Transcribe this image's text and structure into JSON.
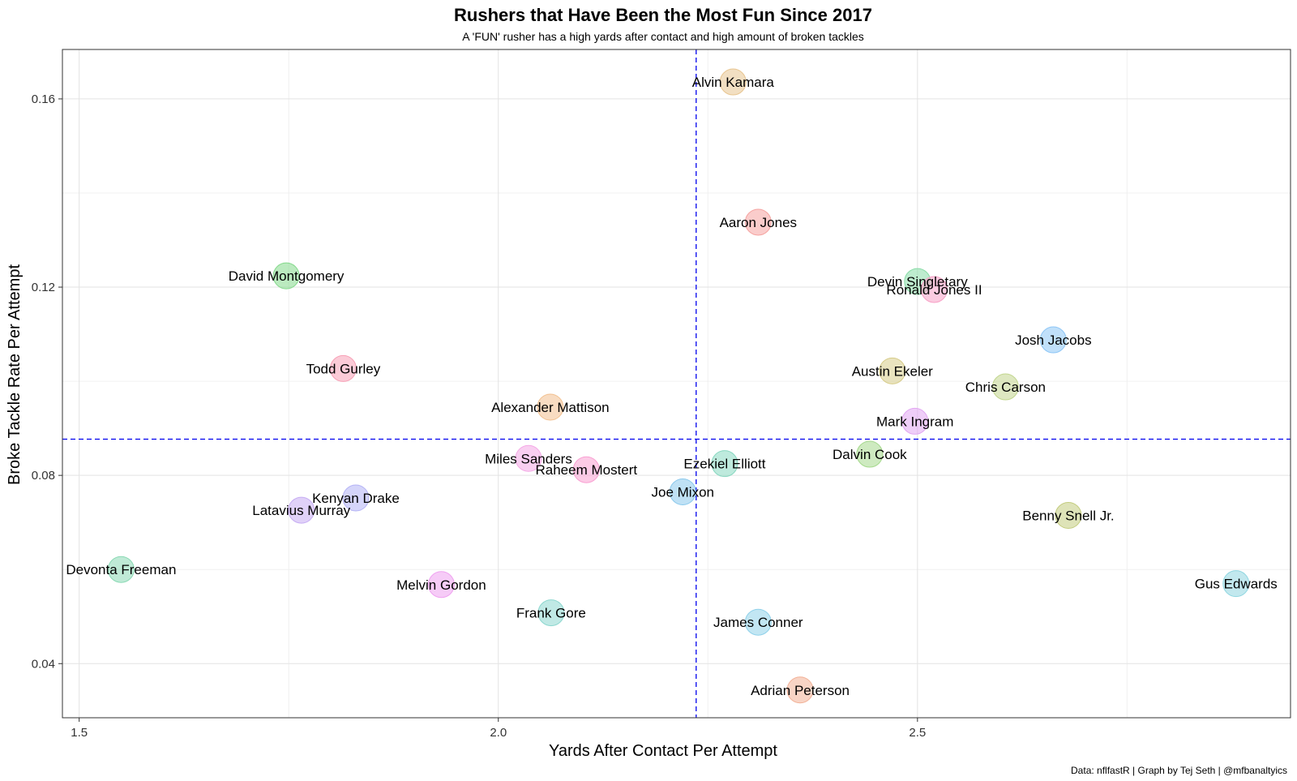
{
  "chart_data": {
    "type": "scatter",
    "title": "Rushers that Have Been the Most Fun Since 2017",
    "subtitle": "A 'FUN' rusher has a high yards after contact and high amount of broken tackles",
    "xlabel": "Yards After Contact Per Attempt",
    "ylabel": "Broke Tackle Rate Per Attempt",
    "caption": "Data: nflfastR | Graph by Tej Seth | @mfbanaltyics",
    "xlim": [
      1.48,
      2.945
    ],
    "ylim": [
      0.0285,
      0.1705
    ],
    "x_ticks": [
      1.5,
      2.0,
      2.5
    ],
    "x_tick_labels": [
      "1.5",
      "2.0",
      "2.5"
    ],
    "y_ticks": [
      0.04,
      0.08,
      0.12,
      0.16
    ],
    "y_tick_labels": [
      "0.04",
      "0.08",
      "0.12",
      "0.16"
    ],
    "grid": true,
    "reference_lines": {
      "x_mean": 2.236,
      "y_mean": 0.0877,
      "color": "#0000ee"
    },
    "points": [
      {
        "name": "Alvin Kamara",
        "x": 2.28,
        "y": 0.1636,
        "color": "#e8c590"
      },
      {
        "name": "Aaron Jones",
        "x": 2.31,
        "y": 0.1338,
        "color": "#f5a3a0"
      },
      {
        "name": "David Montgomery",
        "x": 1.747,
        "y": 0.1224,
        "color": "#83d98a"
      },
      {
        "name": "Devin Singletary",
        "x": 2.5,
        "y": 0.1212,
        "color": "#89dca7"
      },
      {
        "name": "Ronald Jones II",
        "x": 2.52,
        "y": 0.1195,
        "color": "#f7a0c6"
      },
      {
        "name": "Josh Jacobs",
        "x": 2.662,
        "y": 0.1088,
        "color": "#8dc6f6"
      },
      {
        "name": "Todd Gurley",
        "x": 1.815,
        "y": 0.1027,
        "color": "#f7a0b6"
      },
      {
        "name": "Austin Ekeler",
        "x": 2.47,
        "y": 0.1022,
        "color": "#d7cc89"
      },
      {
        "name": "Chris Carson",
        "x": 2.605,
        "y": 0.0988,
        "color": "#c2d68e"
      },
      {
        "name": "Alexander Mattison",
        "x": 2.062,
        "y": 0.0945,
        "color": "#f2c08f"
      },
      {
        "name": "Mark Ingram",
        "x": 2.497,
        "y": 0.0915,
        "color": "#e2a6f2"
      },
      {
        "name": "Dalvin Cook",
        "x": 2.443,
        "y": 0.0845,
        "color": "#a5d98c"
      },
      {
        "name": "Miles Sanders",
        "x": 2.036,
        "y": 0.0836,
        "color": "#f4a7e6"
      },
      {
        "name": "Ezekiel Elliott",
        "x": 2.27,
        "y": 0.0825,
        "color": "#89d8c1"
      },
      {
        "name": "Raheem Mostert",
        "x": 2.105,
        "y": 0.0812,
        "color": "#f9a0d2"
      },
      {
        "name": "Joe Mixon",
        "x": 2.22,
        "y": 0.0765,
        "color": "#8bc9ec"
      },
      {
        "name": "Kenyan Drake",
        "x": 1.83,
        "y": 0.0752,
        "color": "#b3b2f5"
      },
      {
        "name": "Latavius Murray",
        "x": 1.765,
        "y": 0.0726,
        "color": "#c6acf3"
      },
      {
        "name": "Benny Snell Jr.",
        "x": 2.68,
        "y": 0.0715,
        "color": "#c3cc7e"
      },
      {
        "name": "Devonta Freeman",
        "x": 1.55,
        "y": 0.06,
        "color": "#8ad9b4"
      },
      {
        "name": "Gus Edwards",
        "x": 2.88,
        "y": 0.057,
        "color": "#8fd6e0"
      },
      {
        "name": "Melvin Gordon",
        "x": 1.932,
        "y": 0.0568,
        "color": "#efa1f0"
      },
      {
        "name": "Frank Gore",
        "x": 2.063,
        "y": 0.0508,
        "color": "#8dd7cf"
      },
      {
        "name": "James Conner",
        "x": 2.31,
        "y": 0.0488,
        "color": "#8fd1ea"
      },
      {
        "name": "Adrian Peterson",
        "x": 2.36,
        "y": 0.0344,
        "color": "#f2b095"
      }
    ]
  }
}
